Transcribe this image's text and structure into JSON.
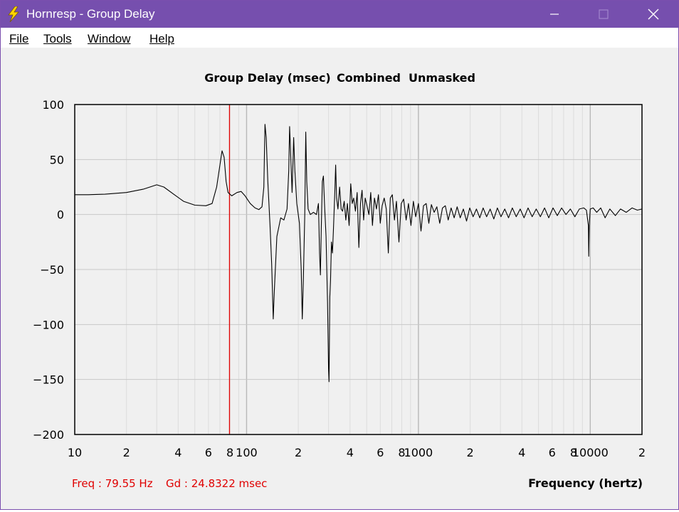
{
  "window": {
    "title": "Hornresp - Group Delay",
    "menu": [
      {
        "label": "File"
      },
      {
        "label": "Tools"
      },
      {
        "label": "Window"
      },
      {
        "label": "Help"
      }
    ]
  },
  "chart_data": {
    "type": "line",
    "title_parts": [
      "Group Delay (msec)",
      "Combined",
      "Unmasked"
    ],
    "xlabel": "Frequency (hertz)",
    "ylabel": "",
    "x_scale": "log",
    "xlim": [
      10,
      20000
    ],
    "ylim": [
      -200,
      100
    ],
    "y_ticks": [
      100,
      50,
      0,
      -50,
      -100,
      -150,
      -200
    ],
    "x_tick_labels": [
      {
        "x": 10,
        "label": "10"
      },
      {
        "x": 20,
        "label": "2"
      },
      {
        "x": 40,
        "label": "4"
      },
      {
        "x": 60,
        "label": "6"
      },
      {
        "x": 80,
        "label": "8"
      },
      {
        "x": 100,
        "label": "100"
      },
      {
        "x": 200,
        "label": "2"
      },
      {
        "x": 400,
        "label": "4"
      },
      {
        "x": 600,
        "label": "6"
      },
      {
        "x": 800,
        "label": "8"
      },
      {
        "x": 1000,
        "label": "1000"
      },
      {
        "x": 2000,
        "label": "2"
      },
      {
        "x": 4000,
        "label": "4"
      },
      {
        "x": 6000,
        "label": "6"
      },
      {
        "x": 8000,
        "label": "8"
      },
      {
        "x": 10000,
        "label": "10000"
      },
      {
        "x": 20000,
        "label": "2"
      }
    ],
    "grid": true,
    "cursor": {
      "freq": 79.55,
      "color": "#e00000"
    },
    "readout": {
      "freq": "Freq : 79.55 Hz",
      "gd": "Gd : 24.8322 msec",
      "color": "#e00000"
    },
    "series": [
      {
        "color": "#000000",
        "points": [
          [
            10,
            18
          ],
          [
            12,
            18
          ],
          [
            15,
            18.5
          ],
          [
            20,
            20
          ],
          [
            25,
            23
          ],
          [
            30,
            27
          ],
          [
            33,
            25
          ],
          [
            38,
            18
          ],
          [
            43,
            12
          ],
          [
            50,
            8.5
          ],
          [
            58,
            8
          ],
          [
            63,
            10
          ],
          [
            67,
            25
          ],
          [
            70,
            45
          ],
          [
            72,
            58
          ],
          [
            74,
            52
          ],
          [
            76,
            30
          ],
          [
            78,
            20
          ],
          [
            82,
            17
          ],
          [
            88,
            20
          ],
          [
            93,
            21
          ],
          [
            98,
            17
          ],
          [
            105,
            10
          ],
          [
            112,
            6
          ],
          [
            118,
            4.5
          ],
          [
            123,
            7
          ],
          [
            126,
            25
          ],
          [
            128,
            82
          ],
          [
            130,
            70
          ],
          [
            133,
            30
          ],
          [
            137,
            -10
          ],
          [
            140,
            -45
          ],
          [
            143,
            -95
          ],
          [
            145,
            -70
          ],
          [
            150,
            -20
          ],
          [
            158,
            -3
          ],
          [
            165,
            -5
          ],
          [
            172,
            5
          ],
          [
            176,
            40
          ],
          [
            178,
            80
          ],
          [
            180,
            60
          ],
          [
            184,
            20
          ],
          [
            188,
            70
          ],
          [
            191,
            40
          ],
          [
            196,
            10
          ],
          [
            203,
            -8
          ],
          [
            208,
            -50
          ],
          [
            211,
            -95
          ],
          [
            214,
            -60
          ],
          [
            218,
            0
          ],
          [
            221,
            75
          ],
          [
            224,
            30
          ],
          [
            228,
            5
          ],
          [
            235,
            0
          ],
          [
            245,
            2
          ],
          [
            255,
            0
          ],
          [
            262,
            10
          ],
          [
            266,
            -35
          ],
          [
            269,
            -55
          ],
          [
            272,
            -12
          ],
          [
            276,
            30
          ],
          [
            280,
            35
          ],
          [
            284,
            10
          ],
          [
            290,
            -20
          ],
          [
            296,
            -80
          ],
          [
            300,
            -140
          ],
          [
            302,
            -152
          ],
          [
            305,
            -75
          ],
          [
            308,
            -60
          ],
          [
            312,
            -25
          ],
          [
            316,
            -35
          ],
          [
            320,
            -15
          ],
          [
            326,
            20
          ],
          [
            330,
            45
          ],
          [
            334,
            15
          ],
          [
            340,
            5
          ],
          [
            348,
            25
          ],
          [
            355,
            5
          ],
          [
            362,
            3
          ],
          [
            370,
            12
          ],
          [
            378,
            -5
          ],
          [
            386,
            10
          ],
          [
            395,
            -10
          ],
          [
            404,
            28
          ],
          [
            412,
            10
          ],
          [
            420,
            15
          ],
          [
            430,
            3
          ],
          [
            440,
            20
          ],
          [
            450,
            -30
          ],
          [
            460,
            10
          ],
          [
            470,
            22
          ],
          [
            480,
            -5
          ],
          [
            490,
            15
          ],
          [
            502,
            8
          ],
          [
            515,
            0
          ],
          [
            528,
            20
          ],
          [
            540,
            -10
          ],
          [
            555,
            15
          ],
          [
            570,
            5
          ],
          [
            585,
            18
          ],
          [
            600,
            -8
          ],
          [
            615,
            8
          ],
          [
            632,
            15
          ],
          [
            650,
            5
          ],
          [
            668,
            -35
          ],
          [
            686,
            15
          ],
          [
            705,
            18
          ],
          [
            725,
            -5
          ],
          [
            745,
            12
          ],
          [
            770,
            -25
          ],
          [
            795,
            10
          ],
          [
            820,
            14
          ],
          [
            848,
            -5
          ],
          [
            875,
            10
          ],
          [
            905,
            -10
          ],
          [
            935,
            12
          ],
          [
            965,
            -2
          ],
          [
            1000,
            10
          ],
          [
            1035,
            -15
          ],
          [
            1070,
            8
          ],
          [
            1110,
            10
          ],
          [
            1150,
            -8
          ],
          [
            1190,
            9
          ],
          [
            1235,
            2
          ],
          [
            1280,
            7
          ],
          [
            1330,
            -8
          ],
          [
            1380,
            6
          ],
          [
            1435,
            8
          ],
          [
            1490,
            -5
          ],
          [
            1550,
            6
          ],
          [
            1615,
            -3
          ],
          [
            1680,
            7
          ],
          [
            1750,
            -3
          ],
          [
            1825,
            5
          ],
          [
            1905,
            -6
          ],
          [
            1990,
            6
          ],
          [
            2080,
            -2
          ],
          [
            2175,
            5
          ],
          [
            2275,
            -3
          ],
          [
            2380,
            6
          ],
          [
            2495,
            -2
          ],
          [
            2615,
            5
          ],
          [
            2745,
            -4
          ],
          [
            2880,
            6
          ],
          [
            3025,
            -2
          ],
          [
            3180,
            5
          ],
          [
            3345,
            -3
          ],
          [
            3520,
            6
          ],
          [
            3710,
            -2
          ],
          [
            3910,
            5
          ],
          [
            4120,
            -3
          ],
          [
            4345,
            6
          ],
          [
            4590,
            -2
          ],
          [
            4850,
            5
          ],
          [
            5125,
            -2
          ],
          [
            5420,
            6
          ],
          [
            5735,
            -3
          ],
          [
            6070,
            6
          ],
          [
            6430,
            -1
          ],
          [
            6815,
            6
          ],
          [
            7225,
            0
          ],
          [
            7665,
            5
          ],
          [
            8135,
            -2
          ],
          [
            8640,
            5
          ],
          [
            9180,
            6
          ],
          [
            9500,
            4
          ],
          [
            9750,
            -10
          ],
          [
            9800,
            -38
          ],
          [
            9870,
            -10
          ],
          [
            10000,
            5
          ],
          [
            10400,
            6
          ],
          [
            10900,
            2
          ],
          [
            11500,
            6
          ],
          [
            12200,
            -3
          ],
          [
            13000,
            5
          ],
          [
            14000,
            -1
          ],
          [
            15000,
            5
          ],
          [
            16200,
            2
          ],
          [
            17500,
            6
          ],
          [
            18800,
            4
          ],
          [
            20000,
            5
          ]
        ]
      }
    ]
  }
}
